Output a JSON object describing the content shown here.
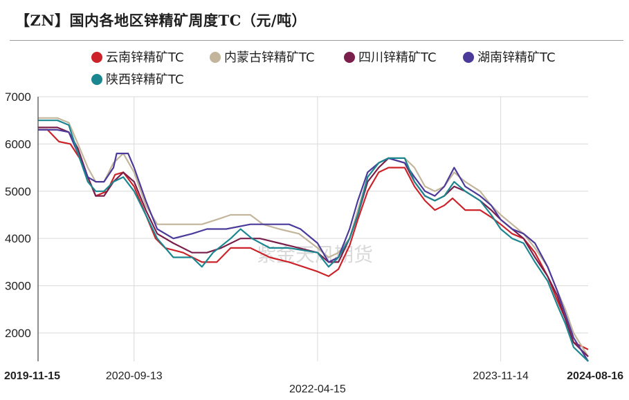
{
  "chart_data": {
    "type": "line",
    "title": "【ZN】国内各地区锌精矿周度TC（元/吨）",
    "watermark": "紫金天风期货",
    "ylim": [
      1400,
      7000
    ],
    "yticks": [
      2000,
      3000,
      4000,
      5000,
      6000,
      7000
    ],
    "xlim": [
      "2019-11-15",
      "2024-08-16"
    ],
    "xticks": [
      {
        "label": "2019-11-15",
        "date": "2019-11-15",
        "bold": true,
        "row": 1,
        "align": "start"
      },
      {
        "label": "2020-09-13",
        "date": "2020-09-13",
        "bold": false,
        "row": 1,
        "align": "middle"
      },
      {
        "label": "2022-04-15",
        "date": "2022-04-15",
        "bold": false,
        "row": 2,
        "align": "middle"
      },
      {
        "label": "2023-11-14",
        "date": "2023-11-14",
        "bold": false,
        "row": 1,
        "align": "middle"
      },
      {
        "label": "2024-08-16",
        "date": "2024-08-16",
        "bold": true,
        "row": 1,
        "align": "end"
      }
    ],
    "vgrid_dates": [
      "2020-09-13",
      "2022-04-15",
      "2023-11-14"
    ],
    "series": [
      {
        "name": "云南锌精矿TC",
        "color": "#cc2229",
        "points": [
          [
            "2019-11-15",
            6300
          ],
          [
            "2019-12-15",
            6300
          ],
          [
            "2020-01-20",
            6050
          ],
          [
            "2020-02-25",
            6000
          ],
          [
            "2020-03-25",
            5700
          ],
          [
            "2020-04-20",
            5300
          ],
          [
            "2020-05-15",
            4900
          ],
          [
            "2020-06-20",
            5000
          ],
          [
            "2020-07-15",
            5350
          ],
          [
            "2020-08-10",
            5400
          ],
          [
            "2020-09-13",
            5100
          ],
          [
            "2020-10-20",
            4500
          ],
          [
            "2020-11-20",
            4000
          ],
          [
            "2020-12-20",
            3800
          ],
          [
            "2021-02-15",
            3700
          ],
          [
            "2021-04-15",
            3500
          ],
          [
            "2021-06-01",
            3500
          ],
          [
            "2021-07-15",
            3800
          ],
          [
            "2021-09-15",
            3800
          ],
          [
            "2021-11-15",
            3600
          ],
          [
            "2022-01-15",
            3500
          ],
          [
            "2022-03-01",
            3400
          ],
          [
            "2022-04-15",
            3300
          ],
          [
            "2022-05-20",
            3200
          ],
          [
            "2022-06-20",
            3350
          ],
          [
            "2022-07-25",
            3850
          ],
          [
            "2022-08-20",
            4400
          ],
          [
            "2022-09-20",
            5000
          ],
          [
            "2022-10-25",
            5400
          ],
          [
            "2022-11-25",
            5500
          ],
          [
            "2023-01-15",
            5500
          ],
          [
            "2023-02-15",
            5100
          ],
          [
            "2023-03-20",
            4800
          ],
          [
            "2023-04-20",
            4600
          ],
          [
            "2023-05-20",
            4700
          ],
          [
            "2023-06-15",
            4850
          ],
          [
            "2023-07-25",
            4600
          ],
          [
            "2023-09-10",
            4600
          ],
          [
            "2023-10-15",
            4450
          ],
          [
            "2023-11-14",
            4300
          ],
          [
            "2023-12-20",
            4100
          ],
          [
            "2024-01-25",
            4000
          ],
          [
            "2024-03-01",
            3700
          ],
          [
            "2024-04-10",
            3200
          ],
          [
            "2024-05-10",
            2700
          ],
          [
            "2024-06-05",
            2300
          ],
          [
            "2024-07-01",
            1800
          ],
          [
            "2024-08-16",
            1650
          ]
        ]
      },
      {
        "name": "内蒙古锌精矿TC",
        "color": "#c2b59b",
        "points": [
          [
            "2019-11-15",
            6550
          ],
          [
            "2020-01-15",
            6550
          ],
          [
            "2020-02-20",
            6450
          ],
          [
            "2020-03-20",
            6000
          ],
          [
            "2020-04-20",
            5500
          ],
          [
            "2020-05-15",
            5200
          ],
          [
            "2020-06-10",
            5200
          ],
          [
            "2020-07-10",
            5600
          ],
          [
            "2020-08-10",
            5800
          ],
          [
            "2020-09-13",
            5400
          ],
          [
            "2020-10-20",
            4700
          ],
          [
            "2020-11-25",
            4300
          ],
          [
            "2021-02-15",
            4300
          ],
          [
            "2021-04-15",
            4300
          ],
          [
            "2021-06-01",
            4400
          ],
          [
            "2021-07-15",
            4500
          ],
          [
            "2021-09-15",
            4500
          ],
          [
            "2021-10-25",
            4300
          ],
          [
            "2021-12-15",
            4200
          ],
          [
            "2022-02-15",
            4100
          ],
          [
            "2022-04-15",
            3800
          ],
          [
            "2022-05-20",
            3600
          ],
          [
            "2022-06-20",
            3700
          ],
          [
            "2022-07-25",
            4000
          ],
          [
            "2022-08-20",
            4600
          ],
          [
            "2022-09-20",
            5300
          ],
          [
            "2022-10-25",
            5600
          ],
          [
            "2022-11-25",
            5700
          ],
          [
            "2023-01-15",
            5700
          ],
          [
            "2023-02-15",
            5500
          ],
          [
            "2023-03-20",
            5100
          ],
          [
            "2023-04-20",
            5000
          ],
          [
            "2023-05-20",
            5100
          ],
          [
            "2023-06-20",
            5400
          ],
          [
            "2023-07-25",
            5200
          ],
          [
            "2023-09-10",
            5000
          ],
          [
            "2023-10-15",
            4700
          ],
          [
            "2023-11-14",
            4500
          ],
          [
            "2023-12-20",
            4300
          ],
          [
            "2024-01-25",
            4100
          ],
          [
            "2024-03-01",
            3800
          ],
          [
            "2024-04-10",
            3400
          ],
          [
            "2024-05-10",
            2900
          ],
          [
            "2024-06-05",
            2500
          ],
          [
            "2024-07-01",
            2000
          ],
          [
            "2024-08-16",
            1500
          ]
        ]
      },
      {
        "name": "四川锌精矿TC",
        "color": "#7a1f4b",
        "points": [
          [
            "2019-11-15",
            6350
          ],
          [
            "2020-01-15",
            6350
          ],
          [
            "2020-02-20",
            6250
          ],
          [
            "2020-03-20",
            5900
          ],
          [
            "2020-04-20",
            5300
          ],
          [
            "2020-05-15",
            4900
          ],
          [
            "2020-06-10",
            4900
          ],
          [
            "2020-07-10",
            5200
          ],
          [
            "2020-08-10",
            5400
          ],
          [
            "2020-09-13",
            5200
          ],
          [
            "2020-10-20",
            4600
          ],
          [
            "2020-11-25",
            4100
          ],
          [
            "2021-01-15",
            3900
          ],
          [
            "2021-03-15",
            3700
          ],
          [
            "2021-05-01",
            3700
          ],
          [
            "2021-06-15",
            3800
          ],
          [
            "2021-08-15",
            4000
          ],
          [
            "2021-10-15",
            4000
          ],
          [
            "2021-12-15",
            3900
          ],
          [
            "2022-02-15",
            3800
          ],
          [
            "2022-04-15",
            3700
          ],
          [
            "2022-05-20",
            3500
          ],
          [
            "2022-06-20",
            3500
          ],
          [
            "2022-07-25",
            4000
          ],
          [
            "2022-08-20",
            4500
          ],
          [
            "2022-09-20",
            5200
          ],
          [
            "2022-10-25",
            5500
          ],
          [
            "2022-11-25",
            5700
          ],
          [
            "2023-01-15",
            5600
          ],
          [
            "2023-02-15",
            5200
          ],
          [
            "2023-03-20",
            4900
          ],
          [
            "2023-04-20",
            4800
          ],
          [
            "2023-05-20",
            4900
          ],
          [
            "2023-06-20",
            5100
          ],
          [
            "2023-07-25",
            5000
          ],
          [
            "2023-09-10",
            4800
          ],
          [
            "2023-10-15",
            4600
          ],
          [
            "2023-11-14",
            4400
          ],
          [
            "2023-12-20",
            4200
          ],
          [
            "2024-01-25",
            4000
          ],
          [
            "2024-03-01",
            3600
          ],
          [
            "2024-04-10",
            3200
          ],
          [
            "2024-05-10",
            2800
          ],
          [
            "2024-06-05",
            2300
          ],
          [
            "2024-07-01",
            1800
          ],
          [
            "2024-08-16",
            1500
          ]
        ]
      },
      {
        "name": "湖南锌精矿TC",
        "color": "#4b3a9a",
        "points": [
          [
            "2019-11-15",
            6300
          ],
          [
            "2020-01-15",
            6300
          ],
          [
            "2020-02-20",
            6250
          ],
          [
            "2020-03-20",
            5800
          ],
          [
            "2020-04-20",
            5300
          ],
          [
            "2020-05-15",
            5200
          ],
          [
            "2020-06-10",
            5200
          ],
          [
            "2020-07-10",
            5500
          ],
          [
            "2020-07-20",
            5800
          ],
          [
            "2020-08-25",
            5800
          ],
          [
            "2020-09-13",
            5500
          ],
          [
            "2020-10-20",
            4800
          ],
          [
            "2020-11-25",
            4200
          ],
          [
            "2021-01-15",
            4000
          ],
          [
            "2021-03-15",
            4100
          ],
          [
            "2021-05-01",
            4200
          ],
          [
            "2021-07-01",
            4200
          ],
          [
            "2021-09-15",
            4300
          ],
          [
            "2021-11-15",
            4300
          ],
          [
            "2022-01-15",
            4300
          ],
          [
            "2022-02-20",
            4200
          ],
          [
            "2022-04-15",
            3900
          ],
          [
            "2022-05-20",
            3500
          ],
          [
            "2022-06-20",
            3600
          ],
          [
            "2022-07-25",
            4200
          ],
          [
            "2022-08-20",
            4800
          ],
          [
            "2022-09-20",
            5400
          ],
          [
            "2022-10-25",
            5600
          ],
          [
            "2022-11-25",
            5700
          ],
          [
            "2023-01-15",
            5600
          ],
          [
            "2023-02-15",
            5300
          ],
          [
            "2023-03-20",
            5000
          ],
          [
            "2023-04-20",
            4900
          ],
          [
            "2023-05-20",
            5100
          ],
          [
            "2023-06-20",
            5500
          ],
          [
            "2023-07-25",
            5100
          ],
          [
            "2023-09-10",
            4900
          ],
          [
            "2023-10-15",
            4700
          ],
          [
            "2023-11-14",
            4400
          ],
          [
            "2023-12-20",
            4200
          ],
          [
            "2024-01-25",
            4100
          ],
          [
            "2024-03-01",
            3900
          ],
          [
            "2024-04-10",
            3400
          ],
          [
            "2024-05-10",
            2900
          ],
          [
            "2024-06-05",
            2400
          ],
          [
            "2024-07-01",
            1900
          ],
          [
            "2024-08-16",
            1400
          ]
        ]
      },
      {
        "name": "陕西锌精矿TC",
        "color": "#1a868f",
        "points": [
          [
            "2019-11-15",
            6500
          ],
          [
            "2020-01-15",
            6500
          ],
          [
            "2020-02-20",
            6400
          ],
          [
            "2020-03-20",
            5800
          ],
          [
            "2020-04-20",
            5200
          ],
          [
            "2020-05-15",
            5000
          ],
          [
            "2020-06-10",
            5000
          ],
          [
            "2020-07-10",
            5200
          ],
          [
            "2020-08-10",
            5300
          ],
          [
            "2020-09-13",
            5000
          ],
          [
            "2020-10-20",
            4500
          ],
          [
            "2020-11-25",
            4000
          ],
          [
            "2021-01-15",
            3600
          ],
          [
            "2021-03-15",
            3600
          ],
          [
            "2021-04-15",
            3400
          ],
          [
            "2021-05-20",
            3700
          ],
          [
            "2021-07-15",
            4000
          ],
          [
            "2021-08-15",
            4200
          ],
          [
            "2021-09-20",
            4000
          ],
          [
            "2021-11-15",
            3800
          ],
          [
            "2022-01-15",
            3800
          ],
          [
            "2022-04-15",
            3700
          ],
          [
            "2022-05-20",
            3400
          ],
          [
            "2022-06-20",
            3600
          ],
          [
            "2022-07-25",
            4000
          ],
          [
            "2022-08-20",
            4500
          ],
          [
            "2022-09-20",
            5300
          ],
          [
            "2022-10-25",
            5600
          ],
          [
            "2022-11-25",
            5700
          ],
          [
            "2023-01-15",
            5700
          ],
          [
            "2023-02-15",
            5200
          ],
          [
            "2023-03-20",
            4900
          ],
          [
            "2023-04-20",
            4800
          ],
          [
            "2023-05-20",
            4900
          ],
          [
            "2023-06-20",
            5200
          ],
          [
            "2023-07-25",
            5000
          ],
          [
            "2023-09-10",
            4800
          ],
          [
            "2023-10-15",
            4500
          ],
          [
            "2023-11-14",
            4200
          ],
          [
            "2023-12-20",
            4000
          ],
          [
            "2024-01-25",
            3900
          ],
          [
            "2024-03-01",
            3500
          ],
          [
            "2024-04-10",
            3100
          ],
          [
            "2024-05-10",
            2600
          ],
          [
            "2024-06-05",
            2200
          ],
          [
            "2024-07-01",
            1700
          ],
          [
            "2024-08-16",
            1400
          ]
        ]
      }
    ]
  }
}
